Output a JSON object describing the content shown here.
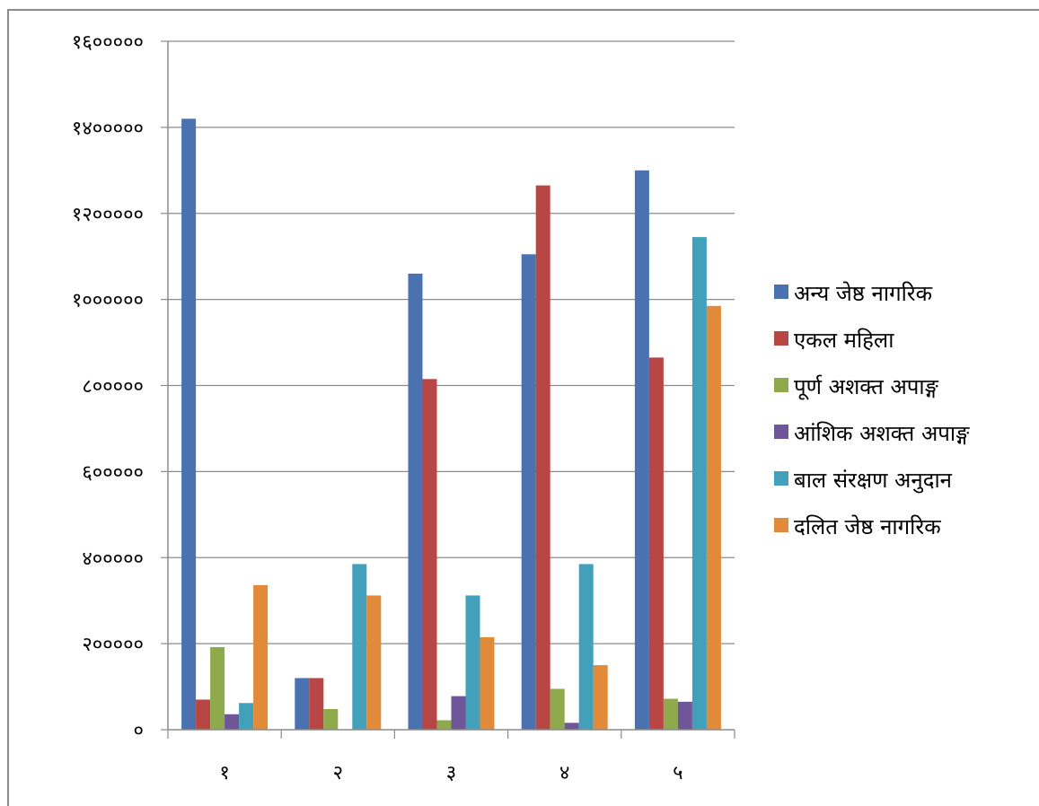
{
  "chart_data": {
    "type": "bar",
    "categories": [
      "१",
      "२",
      "३",
      "४",
      "५"
    ],
    "ylim": [
      0,
      1600000
    ],
    "yticks": [
      0,
      200000,
      400000,
      600000,
      800000,
      1000000,
      1200000,
      1400000,
      1600000
    ],
    "ytick_labels": [
      "०",
      "२०००००",
      "४०००००",
      "६०००००",
      "८०००००",
      "१००००००",
      "१२०००००",
      "१४०००००",
      "१६०००००"
    ],
    "grid": true,
    "legend_position": "right",
    "series": [
      {
        "name": "अन्य जेष्ठ नागरिक",
        "color": "#4a72b0",
        "values": [
          1420000,
          120000,
          1060000,
          1105000,
          1300000
        ]
      },
      {
        "name": "एकल महिला",
        "color": "#b84644",
        "values": [
          70000,
          120000,
          815000,
          1265000,
          865000
        ]
      },
      {
        "name": "पूर्ण अशक्त अपाङ्ग",
        "color": "#8faa4c",
        "values": [
          192000,
          48000,
          22000,
          95000,
          72000
        ]
      },
      {
        "name": "आंशिक अशक्त अपाङ्ग",
        "color": "#6e5698",
        "values": [
          36000,
          0,
          78000,
          16000,
          65000
        ]
      },
      {
        "name": "बाल संरक्षण अनुदान",
        "color": "#43a0bb",
        "values": [
          62000,
          385000,
          312000,
          385000,
          1145000
        ]
      },
      {
        "name": "दलित जेष्ठ नागरिक",
        "color": "#e08a3a",
        "values": [
          336000,
          312000,
          215000,
          150000,
          985000
        ]
      }
    ]
  }
}
